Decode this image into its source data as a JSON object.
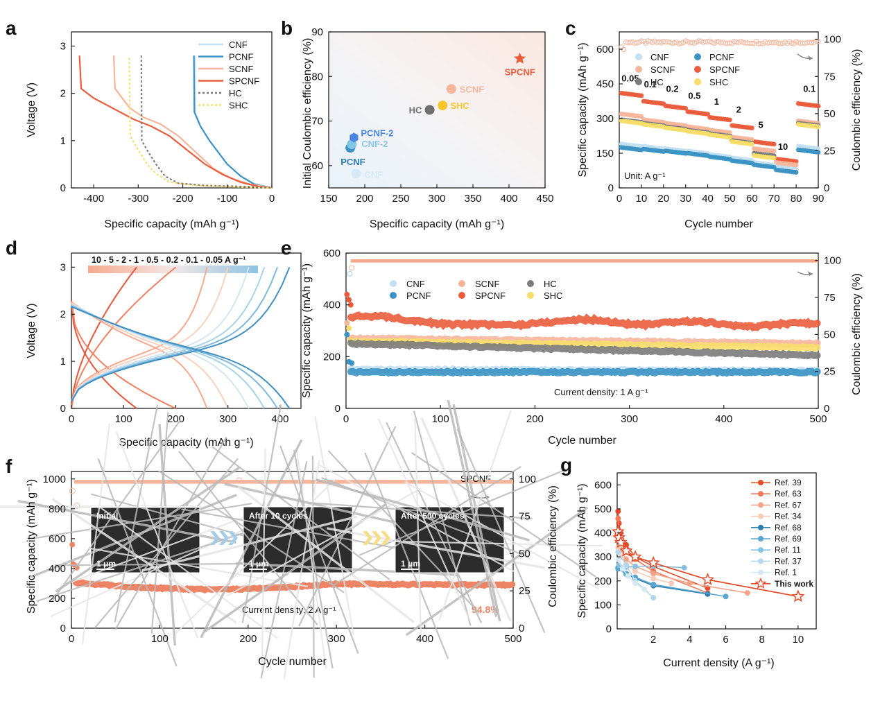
{
  "colors": {
    "CNF": "#c3dff0",
    "PCNF": "#3b93c4",
    "SCNF": "#f6b59b",
    "SPCNF": "#ea5c3c",
    "HC": "#7b7b7b",
    "SHC": "#f7de6a",
    "grayPt": "#aaaaaa",
    "lightBlue": "#9fd3ee"
  },
  "chart_data": [
    {
      "panel": "a",
      "type": "line",
      "xlabel": "Specific capacity (mAh g⁻¹)",
      "ylabel": "Voltage (V)",
      "xlim": [
        -450,
        0
      ],
      "ylim": [
        0,
        3.3
      ],
      "xticks": [
        "-400",
        "-300",
        "-200",
        "-100",
        "0"
      ],
      "yticks": [
        "0",
        "1",
        "2",
        "3"
      ],
      "legend": [
        "CNF",
        "PCNF",
        "SCNF",
        "SPCNF",
        "HC",
        "SHC"
      ],
      "series": [
        {
          "name": "CNF",
          "points": [
            [
              -173,
              2.8
            ],
            [
              -172,
              1.6
            ],
            [
              -160,
              1.3
            ],
            [
              -140,
              1.0
            ],
            [
              -120,
              0.75
            ],
            [
              -100,
              0.5
            ],
            [
              -70,
              0.25
            ],
            [
              -40,
              0.08
            ],
            [
              0,
              0
            ]
          ]
        },
        {
          "name": "PCNF",
          "points": [
            [
              -175,
              2.8
            ],
            [
              -174,
              1.6
            ],
            [
              -160,
              1.3
            ],
            [
              -140,
              1.0
            ],
            [
              -120,
              0.75
            ],
            [
              -100,
              0.5
            ],
            [
              -70,
              0.25
            ],
            [
              -40,
              0.08
            ],
            [
              0,
              0
            ]
          ]
        },
        {
          "name": "SCNF",
          "points": [
            [
              -355,
              2.8
            ],
            [
              -352,
              2.1
            ],
            [
              -320,
              1.7
            ],
            [
              -290,
              1.5
            ],
            [
              -250,
              1.35
            ],
            [
              -210,
              1.1
            ],
            [
              -170,
              0.75
            ],
            [
              -130,
              0.4
            ],
            [
              -90,
              0.2
            ],
            [
              -50,
              0.08
            ],
            [
              0,
              0
            ]
          ]
        },
        {
          "name": "SPCNF",
          "points": [
            [
              -432,
              2.8
            ],
            [
              -428,
              2.1
            ],
            [
              -400,
              1.9
            ],
            [
              -360,
              1.7
            ],
            [
              -310,
              1.45
            ],
            [
              -270,
              1.3
            ],
            [
              -230,
              1.1
            ],
            [
              -190,
              0.8
            ],
            [
              -150,
              0.5
            ],
            [
              -110,
              0.28
            ],
            [
              -70,
              0.12
            ],
            [
              -30,
              0.03
            ],
            [
              0,
              0
            ]
          ]
        },
        {
          "name": "HC",
          "points": [
            [
              -293,
              2.8
            ],
            [
              -292,
              1.0
            ],
            [
              -280,
              0.8
            ],
            [
              -260,
              0.5
            ],
            [
              -240,
              0.25
            ],
            [
              -210,
              0.1
            ],
            [
              -150,
              0.05
            ],
            [
              -60,
              0.03
            ],
            [
              0,
              0
            ]
          ]
        },
        {
          "name": "SHC",
          "points": [
            [
              -320,
              2.75
            ],
            [
              -318,
              1.1
            ],
            [
              -300,
              0.8
            ],
            [
              -280,
              0.5
            ],
            [
              -260,
              0.3
            ],
            [
              -230,
              0.12
            ],
            [
              -170,
              0.05
            ],
            [
              -80,
              0.02
            ],
            [
              0,
              0
            ]
          ]
        }
      ]
    },
    {
      "panel": "b",
      "type": "scatter",
      "xlabel": "Specific capacity (mAh g⁻¹)",
      "ylabel": "Initial Coulombic efficiency (%)",
      "xlim": [
        150,
        450
      ],
      "ylim": [
        55,
        90
      ],
      "xticks": [
        "150",
        "200",
        "250",
        "300",
        "350",
        "400",
        "450"
      ],
      "yticks": [
        "60",
        "70",
        "80",
        "90"
      ],
      "points": [
        {
          "label": "CNF",
          "x": 188,
          "y": 58.2,
          "color": "#d7e9f3"
        },
        {
          "label": "PCNF",
          "x": 180,
          "y": 64,
          "color": "#3b93c4"
        },
        {
          "label": "CNF-2",
          "x": 182,
          "y": 64.8,
          "color": "#82c4e6"
        },
        {
          "label": "PCNF-2",
          "x": 185,
          "y": 66.3,
          "color": "#4a86e0"
        },
        {
          "label": "HC",
          "x": 290,
          "y": 72.5,
          "color": "#6f6f6f"
        },
        {
          "label": "SHC",
          "x": 308,
          "y": 73.5,
          "color": "#f5c72b"
        },
        {
          "label": "SCNF",
          "x": 320,
          "y": 77.2,
          "color": "#f6b59b"
        },
        {
          "label": "SPCNF",
          "x": 415,
          "y": 84,
          "color": "#ea5c3c"
        }
      ]
    },
    {
      "panel": "c",
      "type": "scatter",
      "xlabel": "Cycle number",
      "ylabel": "Specific capacity (mAh g⁻¹)",
      "y2label": "Coulombic efficiency (%)",
      "xlim": [
        0,
        90
      ],
      "ylim": [
        0,
        675
      ],
      "y2lim": [
        0,
        105
      ],
      "xticks": [
        "0",
        "10",
        "20",
        "30",
        "40",
        "50",
        "60",
        "70",
        "80",
        "90"
      ],
      "yticks": [
        "0",
        "150",
        "300",
        "450",
        "600"
      ],
      "y2ticks": [
        "0",
        "25",
        "50",
        "75",
        "100"
      ],
      "legend": [
        "CNF",
        "PCNF",
        "SCNF",
        "SPCNF",
        "HC",
        "SHC"
      ],
      "rates": [
        "0.05",
        "0.1",
        "0.2",
        "0.5",
        "1",
        "2",
        "5",
        "10",
        "0.1"
      ],
      "unit_note": "Unit: A g⁻¹",
      "series": [
        {
          "name": "SPCNF",
          "steps": [
            410,
            375,
            355,
            330,
            305,
            270,
            200,
            125,
            365
          ]
        },
        {
          "name": "SCNF",
          "steps": [
            320,
            295,
            280,
            265,
            250,
            220,
            170,
            110,
            290
          ]
        },
        {
          "name": "HC",
          "steps": [
            295,
            280,
            265,
            250,
            235,
            205,
            150,
            90,
            280
          ]
        },
        {
          "name": "SHC",
          "steps": [
            290,
            275,
            260,
            245,
            230,
            200,
            140,
            80,
            275
          ]
        },
        {
          "name": "CNF",
          "steps": [
            190,
            180,
            170,
            160,
            145,
            130,
            110,
            90,
            180
          ]
        },
        {
          "name": "PCNF",
          "steps": [
            175,
            168,
            160,
            150,
            135,
            118,
            100,
            78,
            165
          ]
        }
      ],
      "ce": 98
    },
    {
      "panel": "d",
      "type": "line",
      "xlabel": "Specific capacity (mAh g⁻¹)",
      "ylabel": "Voltage (V)",
      "xlim": [
        0,
        440
      ],
      "ylim": [
        0,
        3.3
      ],
      "xticks": [
        "0",
        "100",
        "200",
        "300",
        "400"
      ],
      "yticks": [
        "0",
        "1",
        "2",
        "3"
      ],
      "rate_label": "10 - 5 - 2 - 1 - 0.5 - 0.2 - 0.1 - 0.05 A g⁻¹",
      "capacities": [
        125,
        200,
        260,
        300,
        340,
        370,
        395,
        418
      ],
      "colors": [
        "#e8553a",
        "#f08060",
        "#f6a98e",
        "#fbd0bd",
        "#d3e7f2",
        "#a9d2ea",
        "#7fb8dc",
        "#3f8fc3"
      ]
    },
    {
      "panel": "e",
      "type": "scatter",
      "xlabel": "Cycle number",
      "ylabel": "Specific capacity (mAh g⁻¹)",
      "y2label": "Coulombic efficiency (%)",
      "xlim": [
        0,
        500
      ],
      "ylim": [
        0,
        600
      ],
      "y2lim": [
        0,
        105
      ],
      "xticks": [
        "0",
        "100",
        "200",
        "300",
        "400",
        "500"
      ],
      "yticks": [
        "0",
        "200",
        "400",
        "600"
      ],
      "y2ticks": [
        "0",
        "25",
        "50",
        "75",
        "100"
      ],
      "legend": [
        "CNF",
        "SCNF",
        "HC",
        "PCNF",
        "SPCNF",
        "SHC"
      ],
      "note": "Current density: 1 A g⁻¹",
      "series": [
        {
          "name": "SPCNF",
          "start": 350,
          "end": 320
        },
        {
          "name": "SCNF",
          "start": 270,
          "end": 250
        },
        {
          "name": "SHC",
          "start": 258,
          "end": 235
        },
        {
          "name": "HC",
          "start": 250,
          "end": 205
        },
        {
          "name": "CNF",
          "start": 150,
          "end": 145
        },
        {
          "name": "PCNF",
          "start": 140,
          "end": 140
        }
      ],
      "ce": 100
    },
    {
      "panel": "f",
      "type": "scatter",
      "xlabel": "Cycle number",
      "ylabel": "Specific capacity (mAh g⁻¹)",
      "y2label": "Coulombic efficiency (%)",
      "xlim": [
        0,
        500
      ],
      "ylim": [
        0,
        1050
      ],
      "y2lim": [
        0,
        105
      ],
      "xticks": [
        "0",
        "100",
        "200",
        "300",
        "400",
        "500"
      ],
      "yticks": [
        "0",
        "200",
        "400",
        "600",
        "800",
        "1000"
      ],
      "y2ticks": [
        "0",
        "25",
        "50",
        "75",
        "100"
      ],
      "series_name": "SPCNF",
      "note": "Current density: 2 A g⁻¹",
      "retention": "94.8%",
      "capacity_start": 305,
      "capacity_end": 289,
      "ce": 98,
      "sem_labels": [
        "Initial",
        "After 10 cycles",
        "After 500 cycles"
      ],
      "scale_bar": "1 μm"
    },
    {
      "panel": "g",
      "type": "line",
      "xlabel": "Current density (A g⁻¹)",
      "ylabel": "Specific capacity (mAh g⁻¹)",
      "xlim": [
        0,
        11
      ],
      "ylim": [
        0,
        650
      ],
      "xticks": [
        "2",
        "4",
        "6",
        "8",
        "10"
      ],
      "yticks": [
        "0",
        "100",
        "200",
        "300",
        "400",
        "500",
        "600"
      ],
      "series": [
        {
          "name": "Ref. 39",
          "color": "#e24b2a",
          "points": [
            [
              0.05,
              490
            ],
            [
              0.1,
              440
            ],
            [
              0.2,
              400
            ],
            [
              0.5,
              350
            ],
            [
              1,
              300
            ],
            [
              2,
              260
            ],
            [
              5,
              170
            ]
          ]
        },
        {
          "name": "Ref. 63",
          "color": "#ee7857",
          "points": [
            [
              0.05,
              460
            ],
            [
              0.1,
              400
            ],
            [
              0.2,
              360
            ],
            [
              0.5,
              320
            ],
            [
              1,
              290
            ],
            [
              2,
              240
            ],
            [
              5,
              150
            ]
          ]
        },
        {
          "name": "Ref. 67",
          "color": "#f4a488",
          "points": [
            [
              0.05,
              380
            ],
            [
              0.2,
              330
            ],
            [
              0.5,
              290
            ],
            [
              1,
              260
            ],
            [
              2,
              230
            ],
            [
              4,
              190
            ],
            [
              7.2,
              150
            ]
          ]
        },
        {
          "name": "Ref. 34",
          "color": "#f8cbb8",
          "points": [
            [
              0.05,
              340
            ],
            [
              0.2,
              300
            ],
            [
              0.5,
              270
            ],
            [
              1,
              240
            ],
            [
              2,
              210
            ],
            [
              3,
              190
            ]
          ]
        },
        {
          "name": "Ref. 68",
          "color": "#2e7fb0",
          "points": [
            [
              0.05,
              255
            ],
            [
              0.5,
              230
            ],
            [
              1,
              210
            ],
            [
              2,
              180
            ],
            [
              5,
              145
            ]
          ]
        },
        {
          "name": "Ref. 69",
          "color": "#5aa6cf",
          "points": [
            [
              0.05,
              250
            ],
            [
              0.5,
              228
            ],
            [
              1,
              215
            ],
            [
              2,
              185
            ],
            [
              6,
              135
            ]
          ]
        },
        {
          "name": "Ref. 11",
          "color": "#86c1e2",
          "points": [
            [
              0.1,
              265
            ],
            [
              0.5,
              258
            ],
            [
              1,
              260
            ],
            [
              2,
              262
            ],
            [
              3.7,
              255
            ]
          ]
        },
        {
          "name": "Ref. 37",
          "color": "#b4d7ec",
          "points": [
            [
              0.05,
              320
            ],
            [
              0.5,
              265
            ],
            [
              1,
              200
            ],
            [
              2,
              130
            ]
          ]
        },
        {
          "name": "Ref. 1",
          "color": "#d6e8f3",
          "points": [
            [
              0.05,
              290
            ],
            [
              0.3,
              250
            ],
            [
              0.6,
              220
            ],
            [
              1,
              190
            ],
            [
              1.5,
              165
            ]
          ]
        },
        {
          "name": "This work",
          "color": "#e24b2a",
          "star": true,
          "points": [
            [
              0.05,
              405
            ],
            [
              0.1,
              380
            ],
            [
              0.2,
              360
            ],
            [
              0.5,
              325
            ],
            [
              1,
              300
            ],
            [
              2,
              275
            ],
            [
              5,
              205
            ],
            [
              10,
              135
            ]
          ]
        }
      ]
    }
  ]
}
